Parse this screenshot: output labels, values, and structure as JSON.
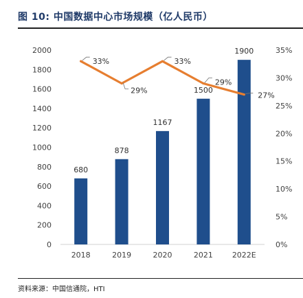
{
  "header": {
    "title": "图 10:  中国数据中心市场规模（亿人民币）"
  },
  "footer": {
    "source": "资料来源：中国信通院，HTI"
  },
  "colors": {
    "bar": "#1f4e8c",
    "line": "#e67e30",
    "title": "#1f3a68",
    "axis_text": "#404040"
  },
  "chart_data": {
    "type": "bar",
    "categories": [
      "2018",
      "2019",
      "2020",
      "2021",
      "2022E"
    ],
    "series": [
      {
        "type": "bar",
        "axis": "left",
        "values": [
          680,
          878,
          1167,
          1500,
          1900
        ],
        "labels": [
          "680",
          "878",
          "1167",
          "1500",
          "1900"
        ]
      },
      {
        "type": "line",
        "axis": "right",
        "values": [
          0.33,
          0.29,
          0.33,
          0.29,
          0.27
        ],
        "labels": [
          "33%",
          "29%",
          "33%",
          "29%",
          "27%"
        ]
      }
    ],
    "y_left": {
      "min": 0,
      "max": 2000,
      "ticks": [
        "0",
        "200",
        "400",
        "600",
        "800",
        "1000",
        "1200",
        "1400",
        "1600",
        "1800",
        "2000"
      ]
    },
    "y_right": {
      "min": 0,
      "max": 0.35,
      "ticks": [
        "0%",
        "5%",
        "10%",
        "15%",
        "20%",
        "25%",
        "30%",
        "35%"
      ]
    },
    "grid": false,
    "legend": "none"
  }
}
